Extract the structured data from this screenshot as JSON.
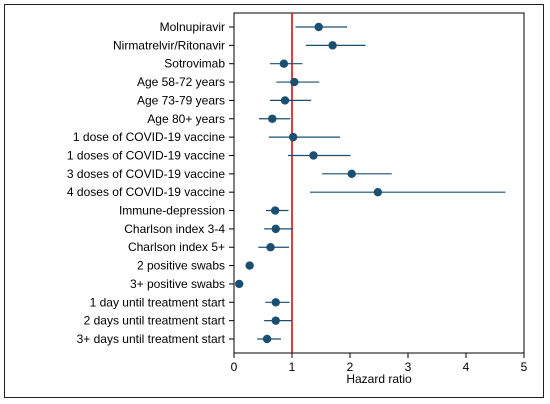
{
  "chart_data": {
    "type": "forest",
    "xlabel": "Hazard ratio",
    "xlim": [
      0,
      5
    ],
    "xticks": [
      0,
      1,
      2,
      3,
      4,
      5
    ],
    "reference_line_x": 1,
    "grid": false,
    "legend": "none",
    "categories": [
      "Molnupiravir",
      "Nirmatrelvir/Ritonavir",
      "Sotrovimab",
      "Age 58-72 years",
      "Age 73-79 years",
      "Age 80+ years",
      "1 dose of COVID-19 vaccine",
      "1 doses of COVID-19 vaccine",
      "3 doses of COVID-19 vaccine",
      "4 doses of COVID-19 vaccine",
      "Immune-depression",
      "Charlson index 3-4",
      "Charlson index 5+",
      "2 positive swabs",
      "3+ positive swabs",
      "1 day until treatment start",
      "2 days until treatment start",
      "3+ days until treatment start"
    ],
    "estimates": [
      1.46,
      1.7,
      0.86,
      1.04,
      0.88,
      0.66,
      1.02,
      1.37,
      2.03,
      2.48,
      0.71,
      0.72,
      0.63,
      0.27,
      0.09,
      0.72,
      0.72,
      0.57
    ],
    "lower": [
      1.06,
      1.24,
      0.62,
      0.73,
      0.62,
      0.43,
      0.6,
      0.93,
      1.52,
      1.31,
      0.55,
      0.52,
      0.42,
      0.23,
      0.07,
      0.54,
      0.52,
      0.4
    ],
    "upper": [
      1.95,
      2.27,
      1.18,
      1.47,
      1.33,
      0.97,
      1.83,
      2.01,
      2.72,
      4.68,
      0.94,
      1.02,
      0.95,
      0.3,
      0.12,
      0.96,
      0.99,
      0.81
    ],
    "colors": {
      "point": "#1a4f72",
      "ci_line": "#1a4f72",
      "reference_line": "#d40000",
      "axis": "#000000"
    }
  }
}
